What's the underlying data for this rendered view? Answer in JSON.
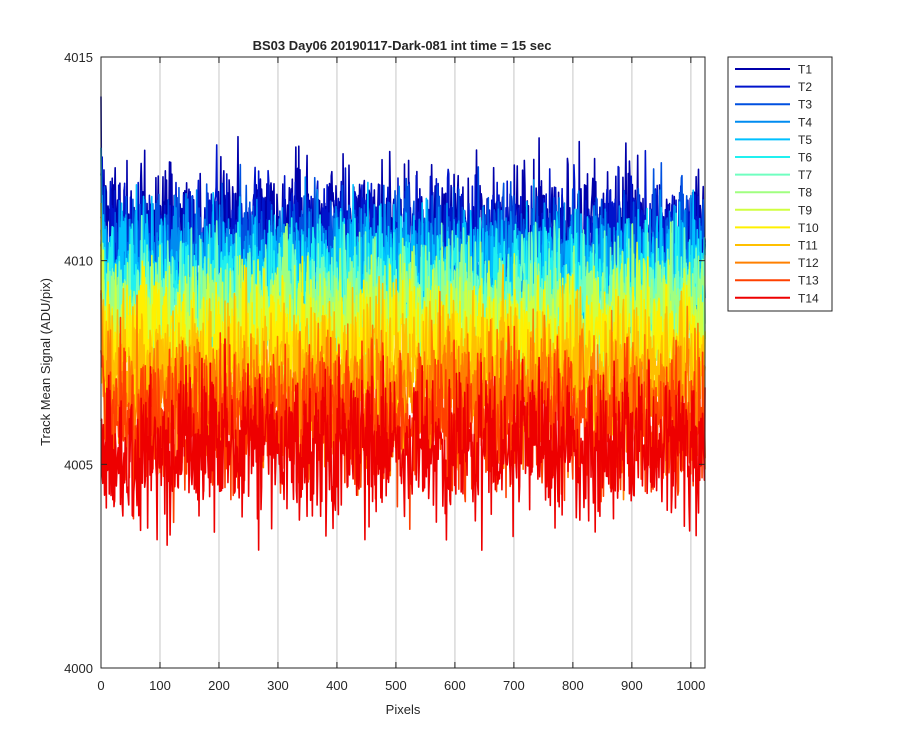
{
  "chart_data": {
    "type": "line",
    "title": "BS03 Day06 20190117-Dark-081 int time = 15 sec",
    "xlabel": "Pixels",
    "ylabel": "Track Mean Signal (ADU/pix)",
    "xlim": [
      0,
      1024
    ],
    "ylim": [
      4000,
      4015
    ],
    "xticks": [
      0,
      100,
      200,
      300,
      400,
      500,
      600,
      700,
      800,
      900,
      1000
    ],
    "yticks": [
      4000,
      4005,
      4010,
      4015
    ],
    "x_gridlines": [
      100,
      200,
      300,
      400,
      500,
      600,
      700,
      800,
      900,
      1000
    ],
    "grid": "vertical",
    "legend_position": "outside-top-right",
    "num_points_per_series": 1024,
    "series": [
      {
        "name": "T1",
        "color": "#0000AA",
        "mean": 4010.8,
        "noise_sd": 0.8
      },
      {
        "name": "T2",
        "color": "#0014CC",
        "mean": 4010.5,
        "noise_sd": 0.8
      },
      {
        "name": "T3",
        "color": "#0050E0",
        "mean": 4010.1,
        "noise_sd": 0.8
      },
      {
        "name": "T4",
        "color": "#008CF0",
        "mean": 4009.8,
        "noise_sd": 0.8
      },
      {
        "name": "T5",
        "color": "#00C0FF",
        "mean": 4009.6,
        "noise_sd": 0.8
      },
      {
        "name": "T6",
        "color": "#20F0F0",
        "mean": 4009.2,
        "noise_sd": 0.8
      },
      {
        "name": "T7",
        "color": "#70FFC0",
        "mean": 4008.9,
        "noise_sd": 0.8
      },
      {
        "name": "T8",
        "color": "#A0FF80",
        "mean": 4008.6,
        "noise_sd": 0.8
      },
      {
        "name": "T9",
        "color": "#D0FF40",
        "mean": 4008.3,
        "noise_sd": 0.8
      },
      {
        "name": "T10",
        "color": "#FFF000",
        "mean": 4007.8,
        "noise_sd": 0.85
      },
      {
        "name": "T11",
        "color": "#FFC000",
        "mean": 4007.3,
        "noise_sd": 0.85
      },
      {
        "name": "T12",
        "color": "#FF8000",
        "mean": 4006.7,
        "noise_sd": 0.85
      },
      {
        "name": "T13",
        "color": "#FF4000",
        "mean": 4006.1,
        "noise_sd": 0.9
      },
      {
        "name": "T14",
        "color": "#EE0000",
        "mean": 4005.4,
        "noise_sd": 0.9
      }
    ]
  }
}
